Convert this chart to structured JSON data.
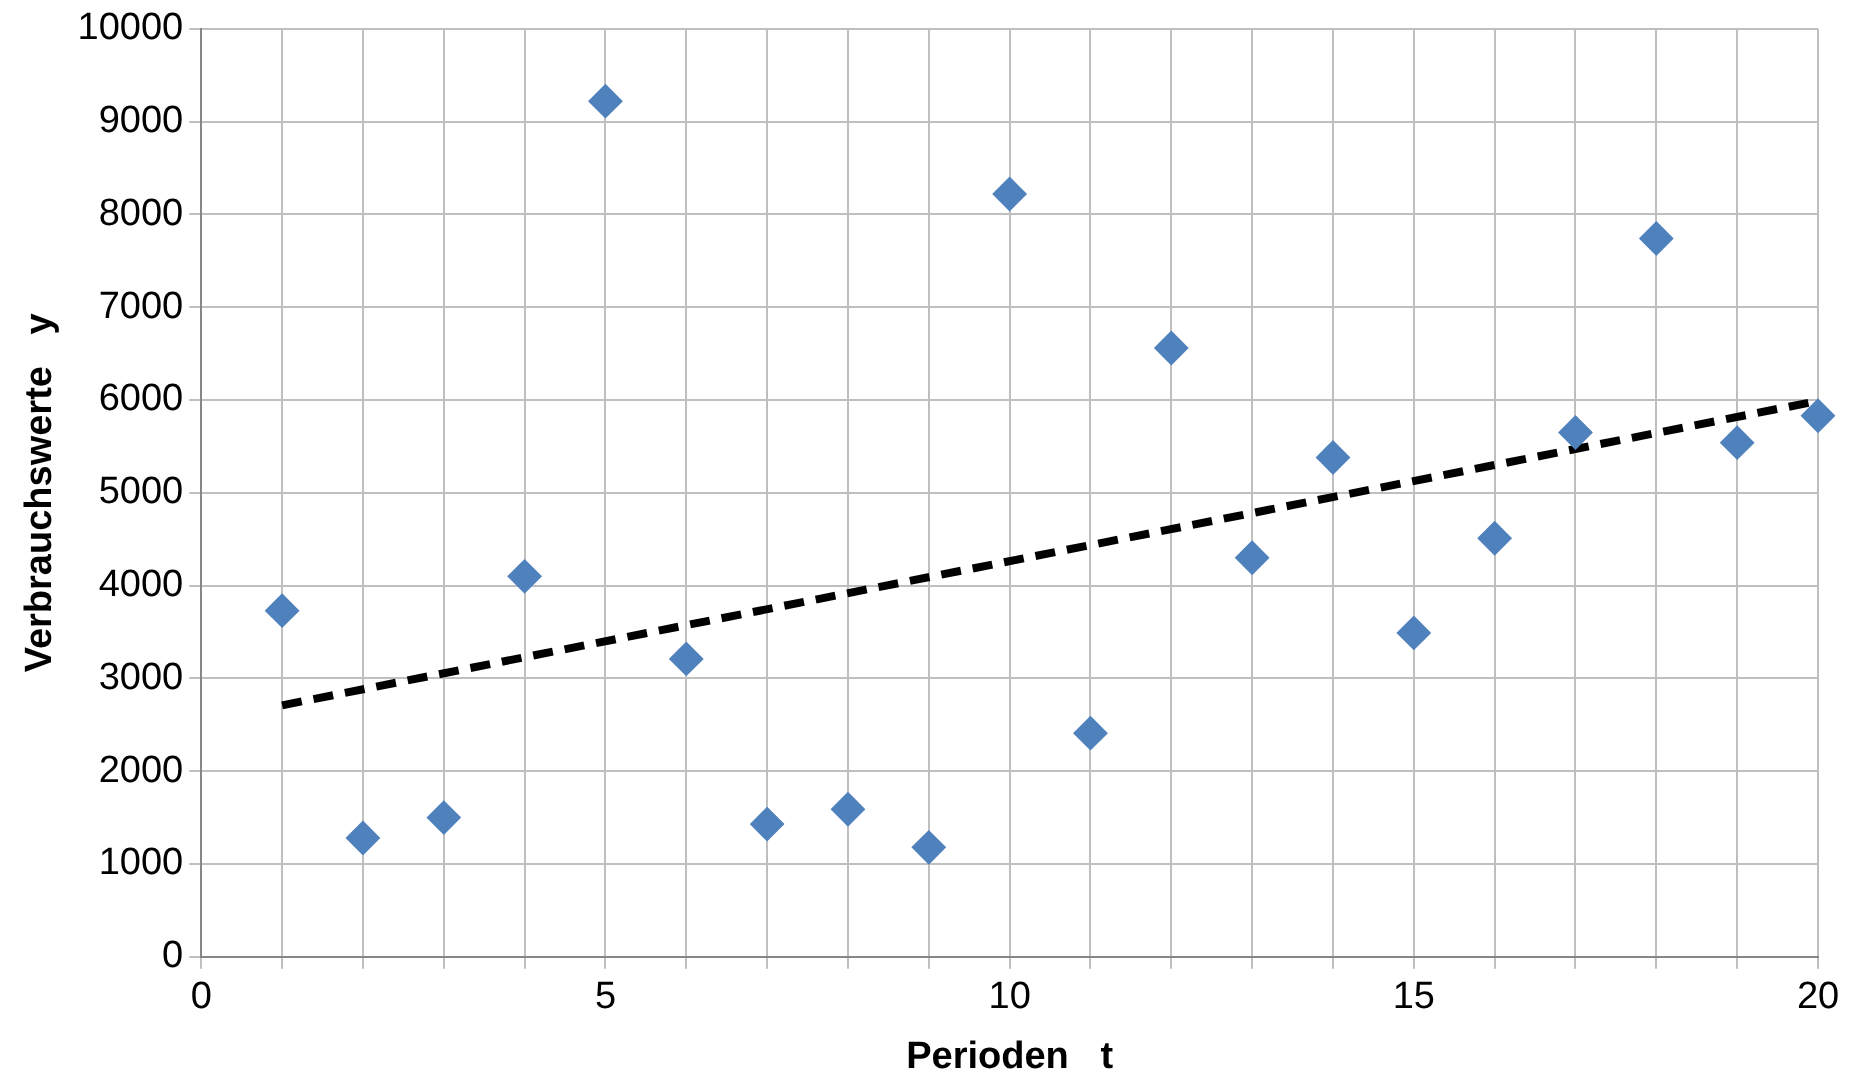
{
  "chart_data": {
    "type": "scatter",
    "xlabel": "Perioden   t",
    "ylabel": "Verbrauchswerte   y",
    "x": [
      1,
      2,
      3,
      4,
      5,
      6,
      7,
      8,
      9,
      10,
      11,
      12,
      13,
      14,
      15,
      16,
      17,
      18,
      19,
      20
    ],
    "series": [
      {
        "color": "#4f81bd",
        "marker": "diamond",
        "values": [
          3730,
          1280,
          1500,
          4100,
          9220,
          3210,
          1430,
          1590,
          1180,
          8220,
          2410,
          6560,
          4300,
          5380,
          3490,
          4510,
          5650,
          7740,
          5540,
          5830
        ]
      },
      {
        "type": "line",
        "color": "#000000",
        "marker": "none",
        "line_style": "dashed",
        "x": [
          1,
          20
        ],
        "values": [
          2710,
          5990
        ]
      }
    ],
    "xlim": [
      0,
      20
    ],
    "xticks": [
      0,
      {
        "value": 1,
        "label": null
      },
      {
        "value": 2,
        "label": null
      },
      {
        "value": 3,
        "label": null
      },
      {
        "value": 4,
        "label": null
      },
      5,
      {
        "value": 6,
        "label": null
      },
      {
        "value": 7,
        "label": null
      },
      {
        "value": 8,
        "label": null
      },
      {
        "value": 9,
        "label": null
      },
      10,
      {
        "value": 11,
        "label": null
      },
      {
        "value": 12,
        "label": null
      },
      {
        "value": 13,
        "label": null
      },
      {
        "value": 14,
        "label": null
      },
      15,
      {
        "value": 16,
        "label": null
      },
      {
        "value": 17,
        "label": null
      },
      {
        "value": 18,
        "label": null
      },
      {
        "value": 19,
        "label": null
      },
      20
    ],
    "ylim": [
      0,
      10000
    ],
    "yticks": [
      0,
      1000,
      2000,
      3000,
      4000,
      5000,
      6000,
      7000,
      8000,
      9000,
      10000
    ],
    "grid": true,
    "legend": false
  }
}
